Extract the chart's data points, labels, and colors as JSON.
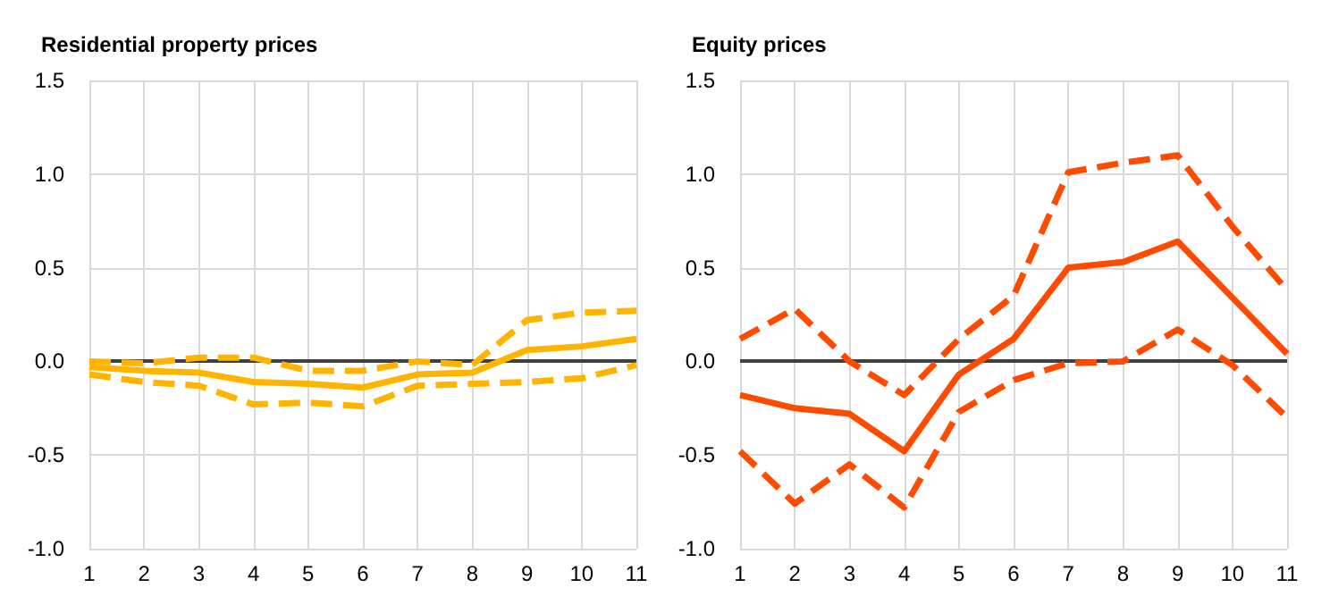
{
  "chart_data": [
    {
      "type": "line",
      "title": "Residential property prices",
      "categories": [
        "1",
        "2",
        "3",
        "4",
        "5",
        "6",
        "7",
        "8",
        "9",
        "10",
        "11"
      ],
      "ylim": [
        -1.0,
        1.5
      ],
      "yticks": [
        {
          "value": -1,
          "label": "-1.0"
        },
        {
          "value": -0.5,
          "label": "-0.5"
        },
        {
          "value": 0,
          "label": "0.0"
        },
        {
          "value": 0.5,
          "label": "0.5"
        },
        {
          "value": 1,
          "label": "1.0"
        },
        {
          "value": 1.5,
          "label": "1.5"
        }
      ],
      "grid": true,
      "marker": "none",
      "series": [
        {
          "color": "#ffb400",
          "line_style": "solid",
          "values": [
            -0.03,
            -0.05,
            -0.06,
            -0.11,
            -0.12,
            -0.14,
            -0.07,
            -0.06,
            0.06,
            0.08,
            0.12
          ]
        },
        {
          "color": "#ffb400",
          "line_style": "dashed",
          "values": [
            0.0,
            -0.01,
            0.02,
            0.02,
            -0.05,
            -0.05,
            0.0,
            -0.02,
            0.22,
            0.26,
            0.27
          ]
        },
        {
          "color": "#ffb400",
          "line_style": "dashed",
          "values": [
            -0.07,
            -0.11,
            -0.13,
            -0.23,
            -0.22,
            -0.24,
            -0.13,
            -0.12,
            -0.11,
            -0.09,
            -0.02
          ]
        }
      ],
      "ref_lines": [
        {
          "axis": "y",
          "value": 0,
          "color": "#404040"
        }
      ]
    },
    {
      "type": "line",
      "title": "Equity prices",
      "categories": [
        "1",
        "2",
        "3",
        "4",
        "5",
        "6",
        "7",
        "8",
        "9",
        "10",
        "11"
      ],
      "ylim": [
        -1.0,
        1.5
      ],
      "yticks": [
        {
          "value": -1,
          "label": "-1.0"
        },
        {
          "value": -0.5,
          "label": "-0.5"
        },
        {
          "value": 0,
          "label": "0.0"
        },
        {
          "value": 0.5,
          "label": "0.5"
        },
        {
          "value": 1,
          "label": "1.0"
        },
        {
          "value": 1.5,
          "label": "1.5"
        }
      ],
      "grid": true,
      "marker": "none",
      "series": [
        {
          "color": "#ff4b00",
          "line_style": "solid",
          "values": [
            -0.18,
            -0.25,
            -0.28,
            -0.48,
            -0.07,
            0.12,
            0.5,
            0.53,
            0.64,
            0.34,
            0.04
          ]
        },
        {
          "color": "#ff4b00",
          "line_style": "dashed",
          "values": [
            0.12,
            0.28,
            0.0,
            -0.18,
            0.12,
            0.35,
            1.01,
            1.06,
            1.1,
            0.72,
            0.38
          ]
        },
        {
          "color": "#ff4b00",
          "line_style": "dashed",
          "values": [
            -0.48,
            -0.76,
            -0.55,
            -0.78,
            -0.27,
            -0.1,
            -0.01,
            0.0,
            0.17,
            -0.02,
            -0.3
          ]
        }
      ],
      "ref_lines": [
        {
          "axis": "y",
          "value": 0,
          "color": "#404040"
        }
      ]
    }
  ]
}
